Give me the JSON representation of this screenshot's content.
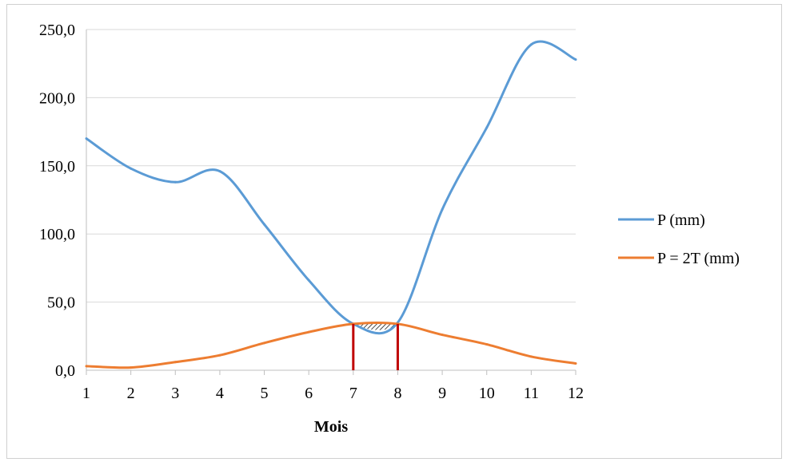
{
  "chart_data": {
    "type": "line",
    "title": "",
    "xlabel": "Mois",
    "ylabel": "",
    "x": [
      1,
      2,
      3,
      4,
      5,
      6,
      7,
      8,
      9,
      10,
      11,
      12
    ],
    "xlim": [
      1,
      12
    ],
    "ylim": [
      0,
      250
    ],
    "y_ticks": [
      "0,0",
      "50,0",
      "100,0",
      "150,0",
      "200,0",
      "250,0"
    ],
    "x_ticks": [
      "1",
      "2",
      "3",
      "4",
      "5",
      "6",
      "7",
      "8",
      "9",
      "10",
      "11",
      "12"
    ],
    "grid": "horizontal",
    "legend_position": "right",
    "series": [
      {
        "name": "P (mm)",
        "color": "#5b9bd5",
        "values": [
          170,
          148,
          138,
          146,
          107,
          66,
          34,
          35,
          118,
          178,
          239,
          228
        ]
      },
      {
        "name": "P = 2T (mm)",
        "color": "#ed7d31",
        "values": [
          3,
          2,
          6,
          11,
          20,
          28,
          34,
          34,
          26,
          19,
          10,
          5
        ]
      }
    ],
    "annotations": {
      "vertical_markers_x": [
        7,
        8
      ],
      "marker_color": "#c00000",
      "hatched_region": "between series, x 7 to 8"
    }
  }
}
